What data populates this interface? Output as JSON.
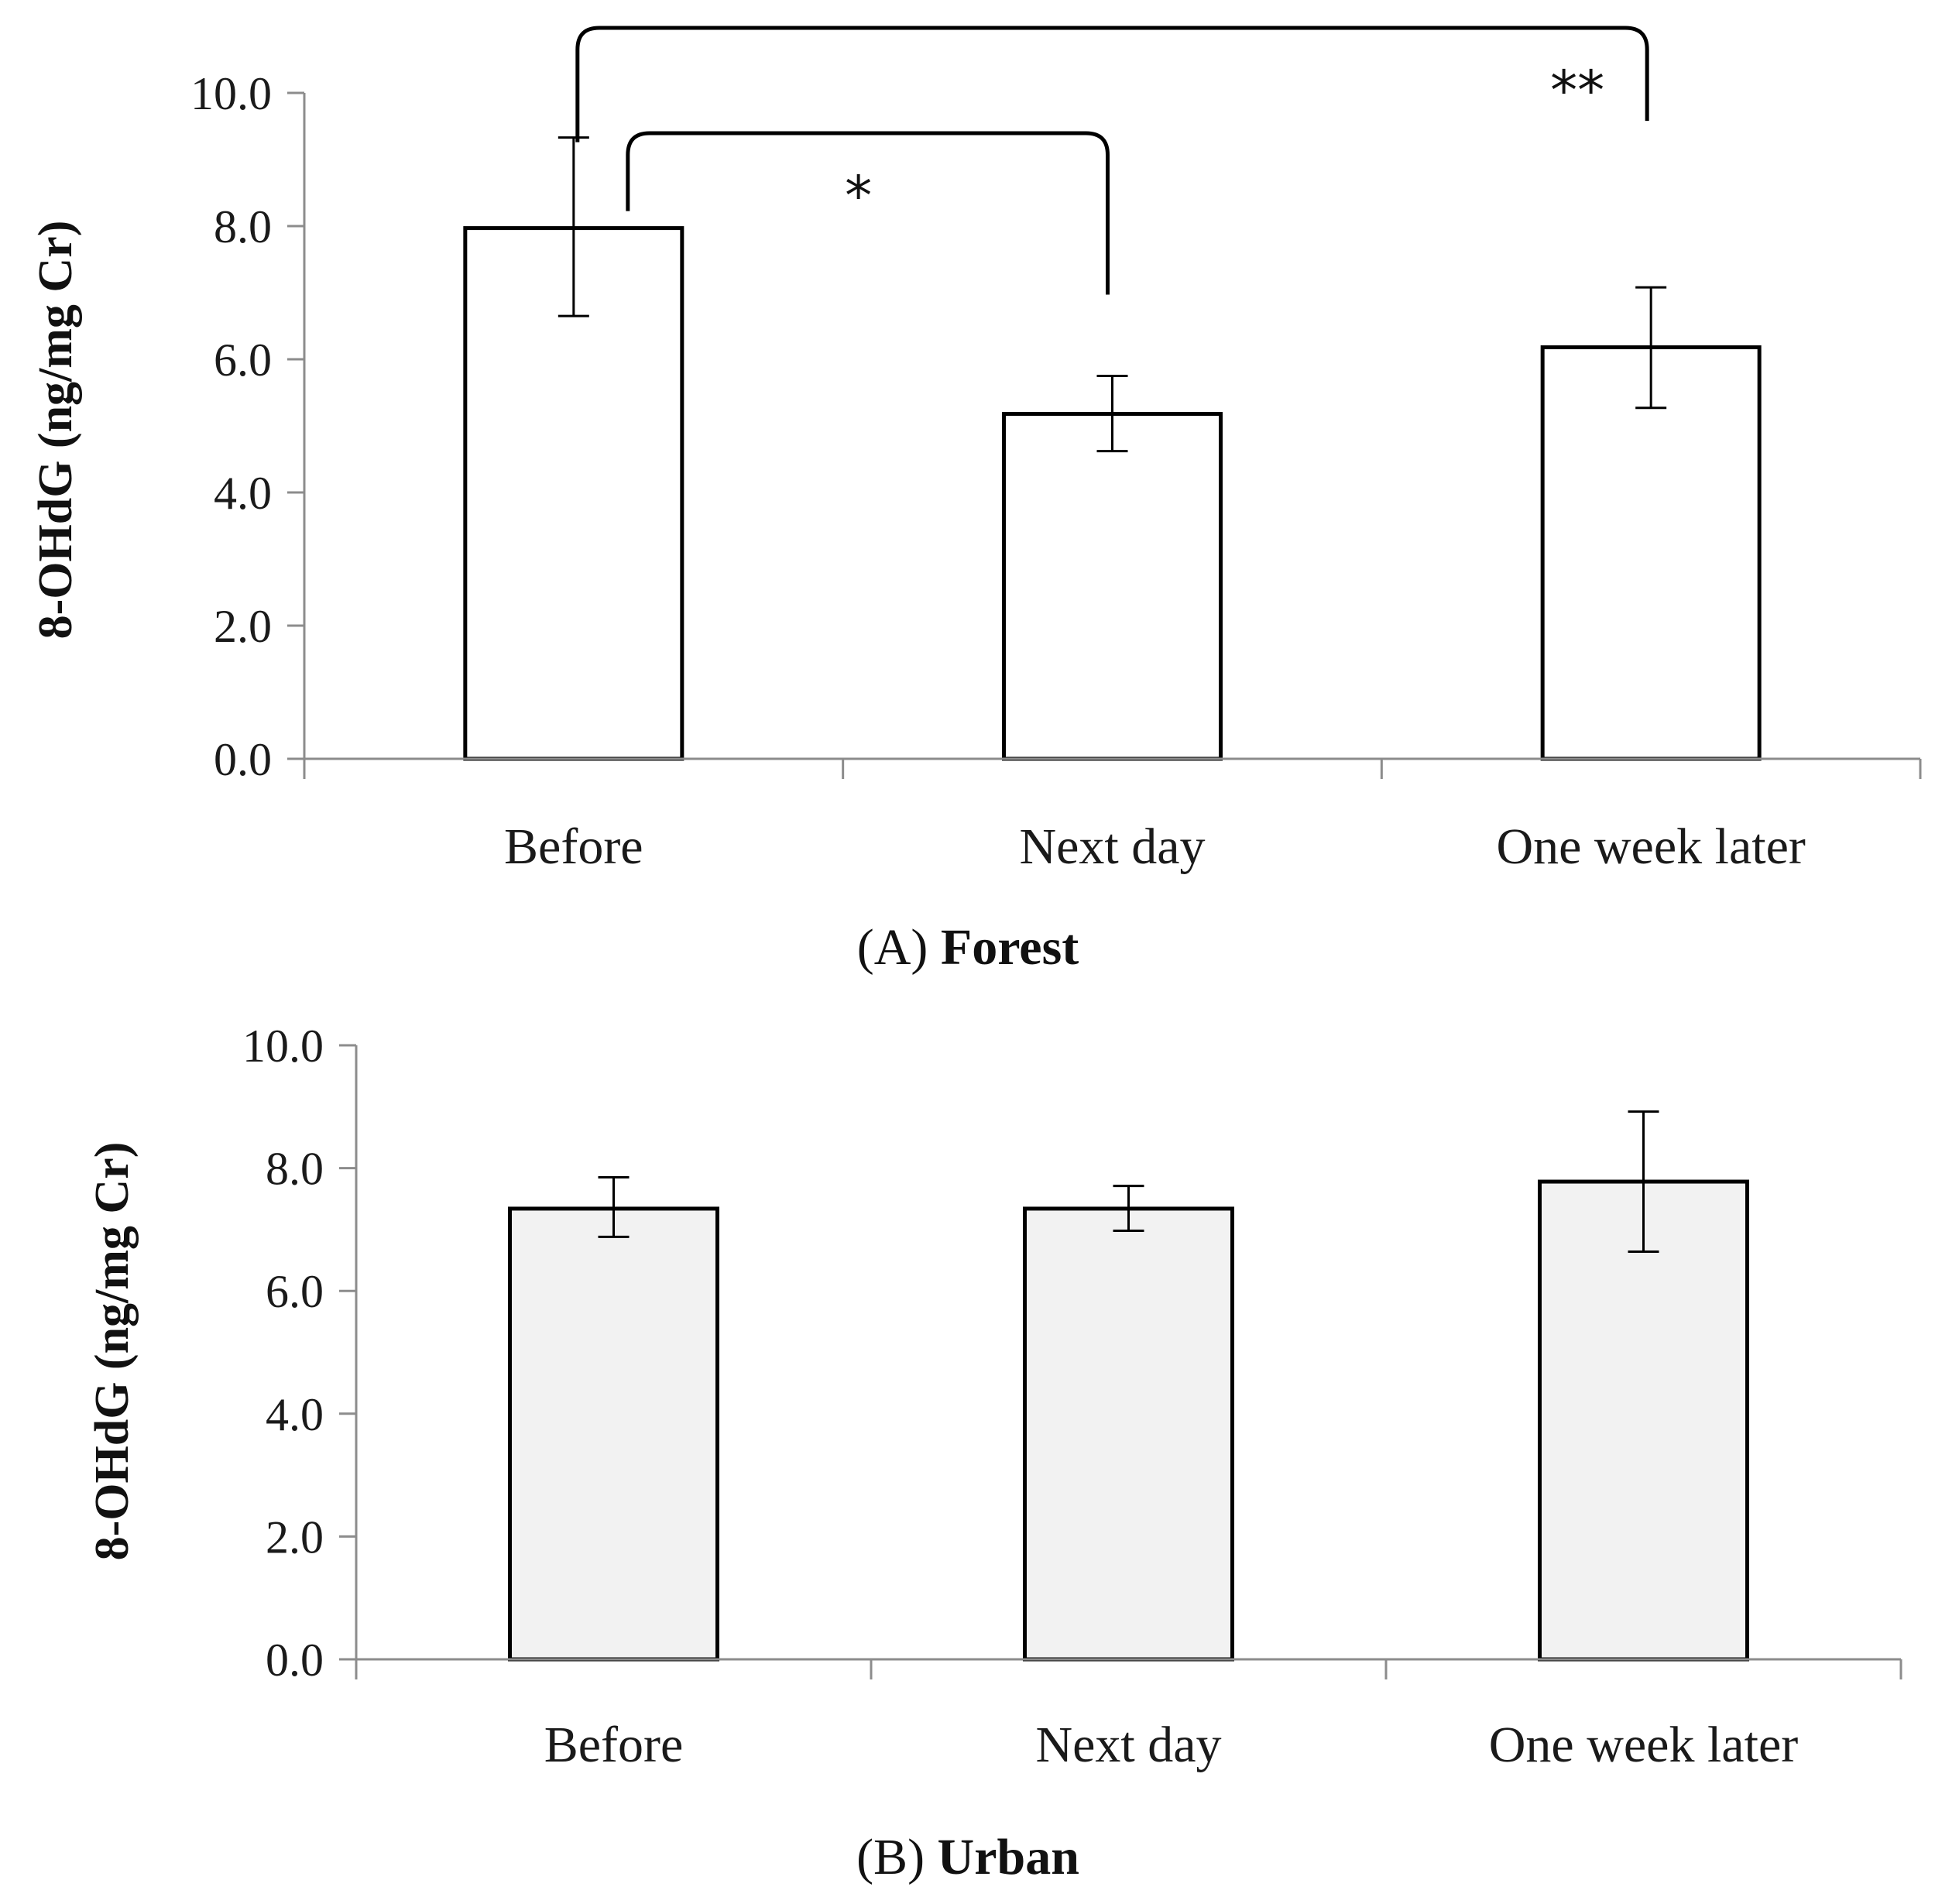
{
  "chart_data": [
    {
      "type": "bar",
      "panel": "A",
      "title_prefix": "(A)",
      "title_main": "Forest",
      "ylabel": "8-OHdG (ng/mg Cr)",
      "ylim": [
        0,
        10
      ],
      "ytick_values": [
        0,
        2,
        4,
        6,
        8,
        10
      ],
      "ytick_labels": [
        "0.0",
        "2.0",
        "4.0",
        "6.0",
        "8.0",
        "10.0"
      ],
      "categories": [
        "Before",
        "Next day",
        "One week later"
      ],
      "values": [
        7.97,
        5.18,
        6.18
      ],
      "error_upper": [
        9.33,
        5.75,
        7.08
      ],
      "error_lower": [
        6.65,
        4.62,
        5.27
      ],
      "bar_fill": "#ffffff",
      "bar_stroke": "#000000",
      "significance": [
        {
          "from": 0,
          "to": 1,
          "label": "*"
        },
        {
          "from": 0,
          "to": 2,
          "label": "**"
        }
      ]
    },
    {
      "type": "bar",
      "panel": "B",
      "title_prefix": "(B)",
      "title_main": "Urban",
      "ylabel": "8-OHdG (ng/mg Cr)",
      "ylim": [
        0,
        10
      ],
      "ytick_values": [
        0,
        2,
        4,
        6,
        8,
        10
      ],
      "ytick_labels": [
        "0.0",
        "2.0",
        "4.0",
        "6.0",
        "8.0",
        "10.0"
      ],
      "categories": [
        "Before",
        "Next day",
        "One week later"
      ],
      "values": [
        7.34,
        7.34,
        7.78
      ],
      "error_upper": [
        7.85,
        7.71,
        8.92
      ],
      "error_lower": [
        6.88,
        6.98,
        6.64
      ],
      "bar_fill": "#f2f2f2",
      "bar_stroke": "#000000",
      "significance": []
    }
  ]
}
